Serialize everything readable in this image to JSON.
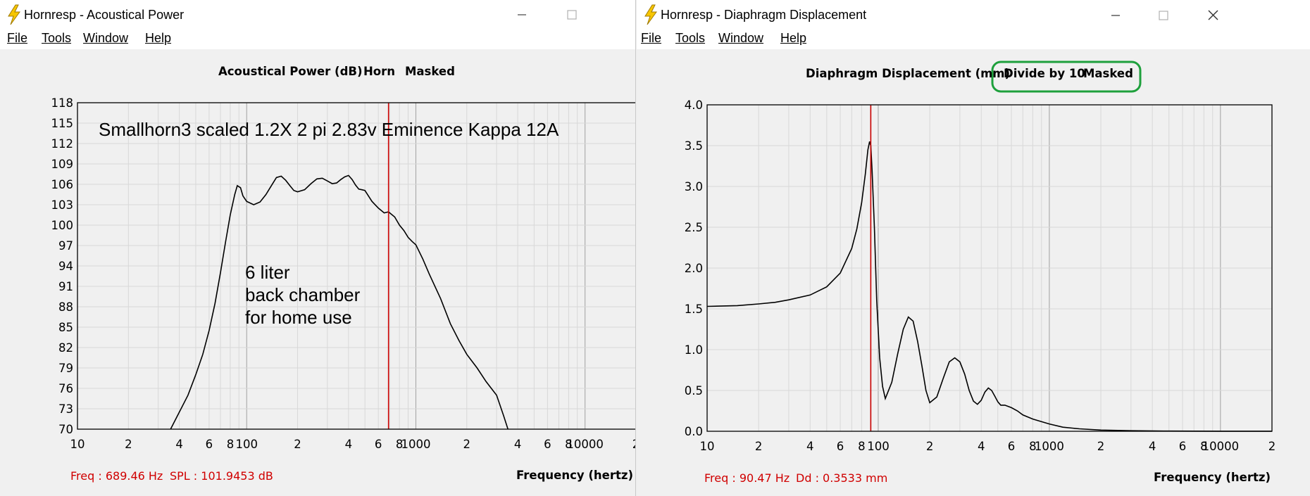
{
  "windows": [
    {
      "title": "Hornresp - Acoustical Power",
      "menu": [
        "File",
        "Tools",
        "Window",
        "Help"
      ],
      "chart_data": {
        "type": "line",
        "title_parts": [
          "Acoustical Power (dB)",
          "Horn",
          "Masked"
        ],
        "xlabel": "Frequency (hertz)",
        "ylabel": "Acoustical Power (dB)",
        "xscale": "log",
        "xlim": [
          10,
          20000
        ],
        "ylim": [
          70,
          118
        ],
        "yticks": [
          "118",
          "115",
          "112",
          "109",
          "106",
          "103",
          "100",
          "97",
          "94",
          "91",
          "88",
          "85",
          "82",
          "79",
          "76",
          "73",
          "70"
        ],
        "xtick_labels": [
          {
            "f": 10,
            "label": "10"
          },
          {
            "f": 20,
            "label": "2"
          },
          {
            "f": 40,
            "label": "4"
          },
          {
            "f": 60,
            "label": "6"
          },
          {
            "f": 80,
            "label": "8"
          },
          {
            "f": 100,
            "label": "100"
          },
          {
            "f": 200,
            "label": "2"
          },
          {
            "f": 400,
            "label": "4"
          },
          {
            "f": 600,
            "label": "6"
          },
          {
            "f": 800,
            "label": "8"
          },
          {
            "f": 1000,
            "label": "1000"
          },
          {
            "f": 2000,
            "label": "2"
          },
          {
            "f": 4000,
            "label": "4"
          },
          {
            "f": 6000,
            "label": "6"
          },
          {
            "f": 8000,
            "label": "8"
          },
          {
            "f": 10000,
            "label": "10000"
          },
          {
            "f": 20000,
            "label": "2"
          }
        ],
        "marker_freq": 689.46,
        "annotations": [
          "Smallhorn3 scaled 1.2X 2 pi 2.83v  Eminence Kappa 12A",
          "6 liter",
          "back chamber",
          "for home use"
        ],
        "status_freq": "Freq : 689.46 Hz",
        "status_value": "SPL : 101.9453 dB",
        "series": [
          {
            "x": [
              35.5,
              40,
              45,
              50,
              55,
              60,
              65,
              70,
              75,
              80,
              85,
              88,
              92,
              95,
              100,
              110,
              120,
              130,
              140,
              150,
              160,
              170,
              180,
              190,
              200,
              220,
              240,
              260,
              280,
              300,
              320,
              340,
              360,
              380,
              400,
              420,
              440,
              460,
              480,
              500,
              550,
              600,
              650,
              689,
              750,
              800,
              850,
              900,
              950,
              1000,
              1100,
              1200,
              1400,
              1600,
              1800,
              2000,
              2300,
              2600,
              3000,
              3300,
              3500
            ],
            "y": [
              70,
              72.5,
              75,
              78,
              81,
              84.5,
              88.5,
              93,
              97.5,
              101.5,
              104.5,
              105.8,
              105.5,
              104.3,
              103.5,
              103,
              103.4,
              104.5,
              105.8,
              107,
              107.2,
              106.6,
              105.8,
              105.1,
              104.9,
              105.2,
              106.1,
              106.8,
              106.9,
              106.5,
              106.1,
              106.2,
              106.7,
              107.1,
              107.3,
              106.7,
              105.9,
              105.3,
              105.2,
              105.1,
              103.5,
              102.5,
              101.8,
              101.95,
              101.2,
              100,
              99.2,
              98.2,
              97.6,
              97.1,
              95,
              92.8,
              89.2,
              85.5,
              83,
              81,
              79,
              77,
              75,
              72,
              70
            ]
          }
        ]
      }
    },
    {
      "title": "Hornresp - Diaphragm Displacement",
      "menu": [
        "File",
        "Tools",
        "Window",
        "Help"
      ],
      "chart_data": {
        "type": "line",
        "title_parts": [
          "Diaphragm Displacement (mm)",
          "Divide by 10",
          "Masked"
        ],
        "title_highlight_color": "#1ea03c",
        "xlabel": "Frequency (hertz)",
        "ylabel": "Diaphragm Displacement (mm)",
        "xscale": "log",
        "xlim": [
          10,
          20000
        ],
        "ylim": [
          0,
          4
        ],
        "yticks": [
          "4.0",
          "3.5",
          "3.0",
          "2.5",
          "2.0",
          "1.5",
          "1.0",
          "0.5",
          "0.0"
        ],
        "xtick_labels": [
          {
            "f": 10,
            "label": "10"
          },
          {
            "f": 20,
            "label": "2"
          },
          {
            "f": 40,
            "label": "4"
          },
          {
            "f": 60,
            "label": "6"
          },
          {
            "f": 80,
            "label": "8"
          },
          {
            "f": 100,
            "label": "100"
          },
          {
            "f": 200,
            "label": "2"
          },
          {
            "f": 400,
            "label": "4"
          },
          {
            "f": 600,
            "label": "6"
          },
          {
            "f": 800,
            "label": "8"
          },
          {
            "f": 1000,
            "label": "1000"
          },
          {
            "f": 2000,
            "label": "2"
          },
          {
            "f": 4000,
            "label": "4"
          },
          {
            "f": 6000,
            "label": "6"
          },
          {
            "f": 8000,
            "label": "8"
          },
          {
            "f": 10000,
            "label": "10000"
          },
          {
            "f": 20000,
            "label": "2"
          }
        ],
        "marker_freq": 90.47,
        "status_freq": "Freq : 90.47 Hz",
        "status_value": "Dd : 0.3533 mm",
        "series": [
          {
            "x": [
              10,
              15,
              20,
              25,
              30,
              40,
              50,
              60,
              70,
              75,
              80,
              84,
              87,
              89,
              90.5,
              92,
              95,
              98,
              102,
              106,
              110,
              120,
              130,
              140,
              150,
              160,
              170,
              180,
              190,
              200,
              220,
              240,
              260,
              280,
              300,
              320,
              340,
              360,
              380,
              400,
              420,
              440,
              460,
              480,
              500,
              520,
              550,
              600,
              650,
              700,
              800,
              1000,
              1200,
              1500,
              2000,
              3000,
              5000,
              10000,
              20000
            ],
            "y": [
              1.53,
              1.54,
              1.56,
              1.58,
              1.61,
              1.67,
              1.77,
              1.94,
              2.24,
              2.48,
              2.8,
              3.15,
              3.45,
              3.55,
              3.5,
              3.2,
              2.5,
              1.6,
              0.9,
              0.55,
              0.4,
              0.6,
              0.95,
              1.25,
              1.4,
              1.35,
              1.1,
              0.8,
              0.5,
              0.35,
              0.42,
              0.65,
              0.85,
              0.9,
              0.85,
              0.7,
              0.5,
              0.37,
              0.33,
              0.38,
              0.48,
              0.53,
              0.5,
              0.43,
              0.36,
              0.32,
              0.32,
              0.29,
              0.25,
              0.2,
              0.15,
              0.09,
              0.05,
              0.03,
              0.015,
              0.007,
              0.003,
              0.001,
              0.0005
            ]
          }
        ]
      }
    }
  ]
}
